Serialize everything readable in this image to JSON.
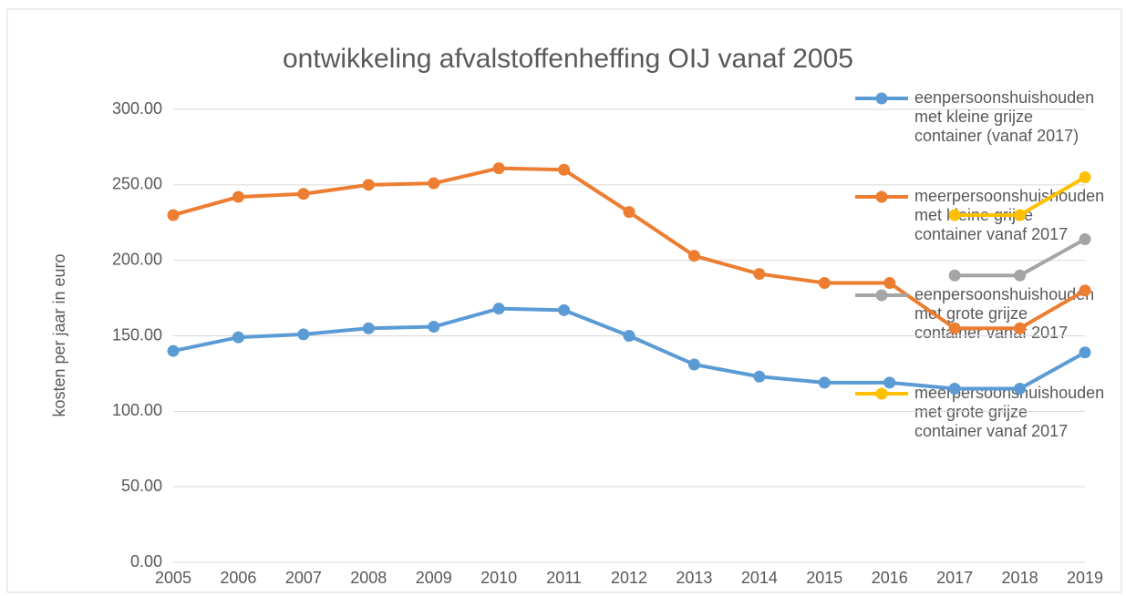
{
  "chart_data": {
    "type": "line",
    "title": "ontwikkeling afvalstoffenheffing OIJ  vanaf 2005",
    "y_label": "kosten per jaar in euro",
    "categories": [
      "2005",
      "2006",
      "2007",
      "2008",
      "2009",
      "2010",
      "2011",
      "2012",
      "2013",
      "2014",
      "2015",
      "2016",
      "2017",
      "2018",
      "2019"
    ],
    "series": [
      {
        "name": "eenpersoonshuishouden met kleine grijze container (vanaf 2017)",
        "color": "#5b9bd5",
        "values": [
          140,
          149,
          151,
          155,
          156,
          168,
          167,
          150,
          131,
          123,
          119,
          119,
          115,
          115,
          139
        ]
      },
      {
        "name": "meerpersoonshuishouden met kleine grijze container vanaf 2017",
        "color": "#ed7d31",
        "values": [
          230,
          242,
          244,
          250,
          251,
          261,
          260,
          232,
          203,
          191,
          185,
          185,
          155,
          155,
          180
        ]
      },
      {
        "name": "eenpersoonshuishouden met grote grijze container vanaf 2017",
        "color": "#a5a5a5",
        "values": [
          null,
          null,
          null,
          null,
          null,
          null,
          null,
          null,
          null,
          null,
          null,
          null,
          190,
          190,
          214
        ]
      },
      {
        "name": "meerpersoonshuishouden met grote grijze container vanaf 2017",
        "color": "#ffc000",
        "values": [
          null,
          null,
          null,
          null,
          null,
          null,
          null,
          null,
          null,
          null,
          null,
          null,
          230,
          230,
          255
        ]
      }
    ],
    "ylim": [
      0,
      300
    ],
    "yticks": [
      {
        "value": 0,
        "label": "0.00"
      },
      {
        "value": 50,
        "label": "50.00"
      },
      {
        "value": 100,
        "label": "100.00"
      },
      {
        "value": 150,
        "label": "150.00"
      },
      {
        "value": 200,
        "label": "200.00"
      },
      {
        "value": 250,
        "label": "250.00"
      },
      {
        "value": 300,
        "label": "300.00"
      }
    ],
    "grid": true,
    "legend": "right"
  }
}
